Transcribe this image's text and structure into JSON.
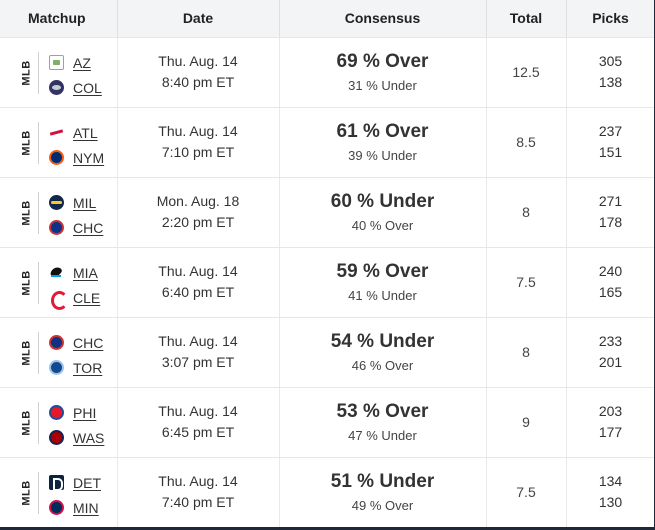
{
  "headers": {
    "matchup": "Matchup",
    "date": "Date",
    "consensus": "Consensus",
    "total": "Total",
    "picks": "Picks"
  },
  "rows": [
    {
      "league": "MLB",
      "team1": {
        "abbr": "AZ",
        "logo": "broken-image-icon"
      },
      "team2": {
        "abbr": "COL",
        "logo": "rockies-logo-icon"
      },
      "date": "Thu. Aug. 14",
      "time": "8:40 pm ET",
      "consensus_main": "69 % Over",
      "consensus_sub": "31 % Under",
      "total": "12.5",
      "picks1": "305",
      "picks2": "138"
    },
    {
      "league": "MLB",
      "team1": {
        "abbr": "ATL",
        "logo": "braves-logo-icon"
      },
      "team2": {
        "abbr": "NYM",
        "logo": "mets-logo-icon"
      },
      "date": "Thu. Aug. 14",
      "time": "7:10 pm ET",
      "consensus_main": "61 % Over",
      "consensus_sub": "39 % Under",
      "total": "8.5",
      "picks1": "237",
      "picks2": "151"
    },
    {
      "league": "MLB",
      "team1": {
        "abbr": "MIL",
        "logo": "brewers-logo-icon"
      },
      "team2": {
        "abbr": "CHC",
        "logo": "cubs-logo-icon"
      },
      "date": "Mon. Aug. 18",
      "time": "2:20 pm ET",
      "consensus_main": "60 % Under",
      "consensus_sub": "40 % Over",
      "total": "8",
      "picks1": "271",
      "picks2": "178"
    },
    {
      "league": "MLB",
      "team1": {
        "abbr": "MIA",
        "logo": "marlins-logo-icon"
      },
      "team2": {
        "abbr": "CLE",
        "logo": "guardians-logo-icon"
      },
      "date": "Thu. Aug. 14",
      "time": "6:40 pm ET",
      "consensus_main": "59 % Over",
      "consensus_sub": "41 % Under",
      "total": "7.5",
      "picks1": "240",
      "picks2": "165"
    },
    {
      "league": "MLB",
      "team1": {
        "abbr": "CHC",
        "logo": "cubs-logo-icon"
      },
      "team2": {
        "abbr": "TOR",
        "logo": "blue-jays-logo-icon"
      },
      "date": "Thu. Aug. 14",
      "time": "3:07 pm ET",
      "consensus_main": "54 % Under",
      "consensus_sub": "46 % Over",
      "total": "8",
      "picks1": "233",
      "picks2": "201"
    },
    {
      "league": "MLB",
      "team1": {
        "abbr": "PHI",
        "logo": "phillies-logo-icon"
      },
      "team2": {
        "abbr": "WAS",
        "logo": "nationals-logo-icon"
      },
      "date": "Thu. Aug. 14",
      "time": "6:45 pm ET",
      "consensus_main": "53 % Over",
      "consensus_sub": "47 % Under",
      "total": "9",
      "picks1": "203",
      "picks2": "177"
    },
    {
      "league": "MLB",
      "team1": {
        "abbr": "DET",
        "logo": "tigers-logo-icon"
      },
      "team2": {
        "abbr": "MIN",
        "logo": "twins-logo-icon"
      },
      "date": "Thu. Aug. 14",
      "time": "7:40 pm ET",
      "consensus_main": "51 % Under",
      "consensus_sub": "49 % Over",
      "total": "7.5",
      "picks1": "134",
      "picks2": "130"
    }
  ]
}
